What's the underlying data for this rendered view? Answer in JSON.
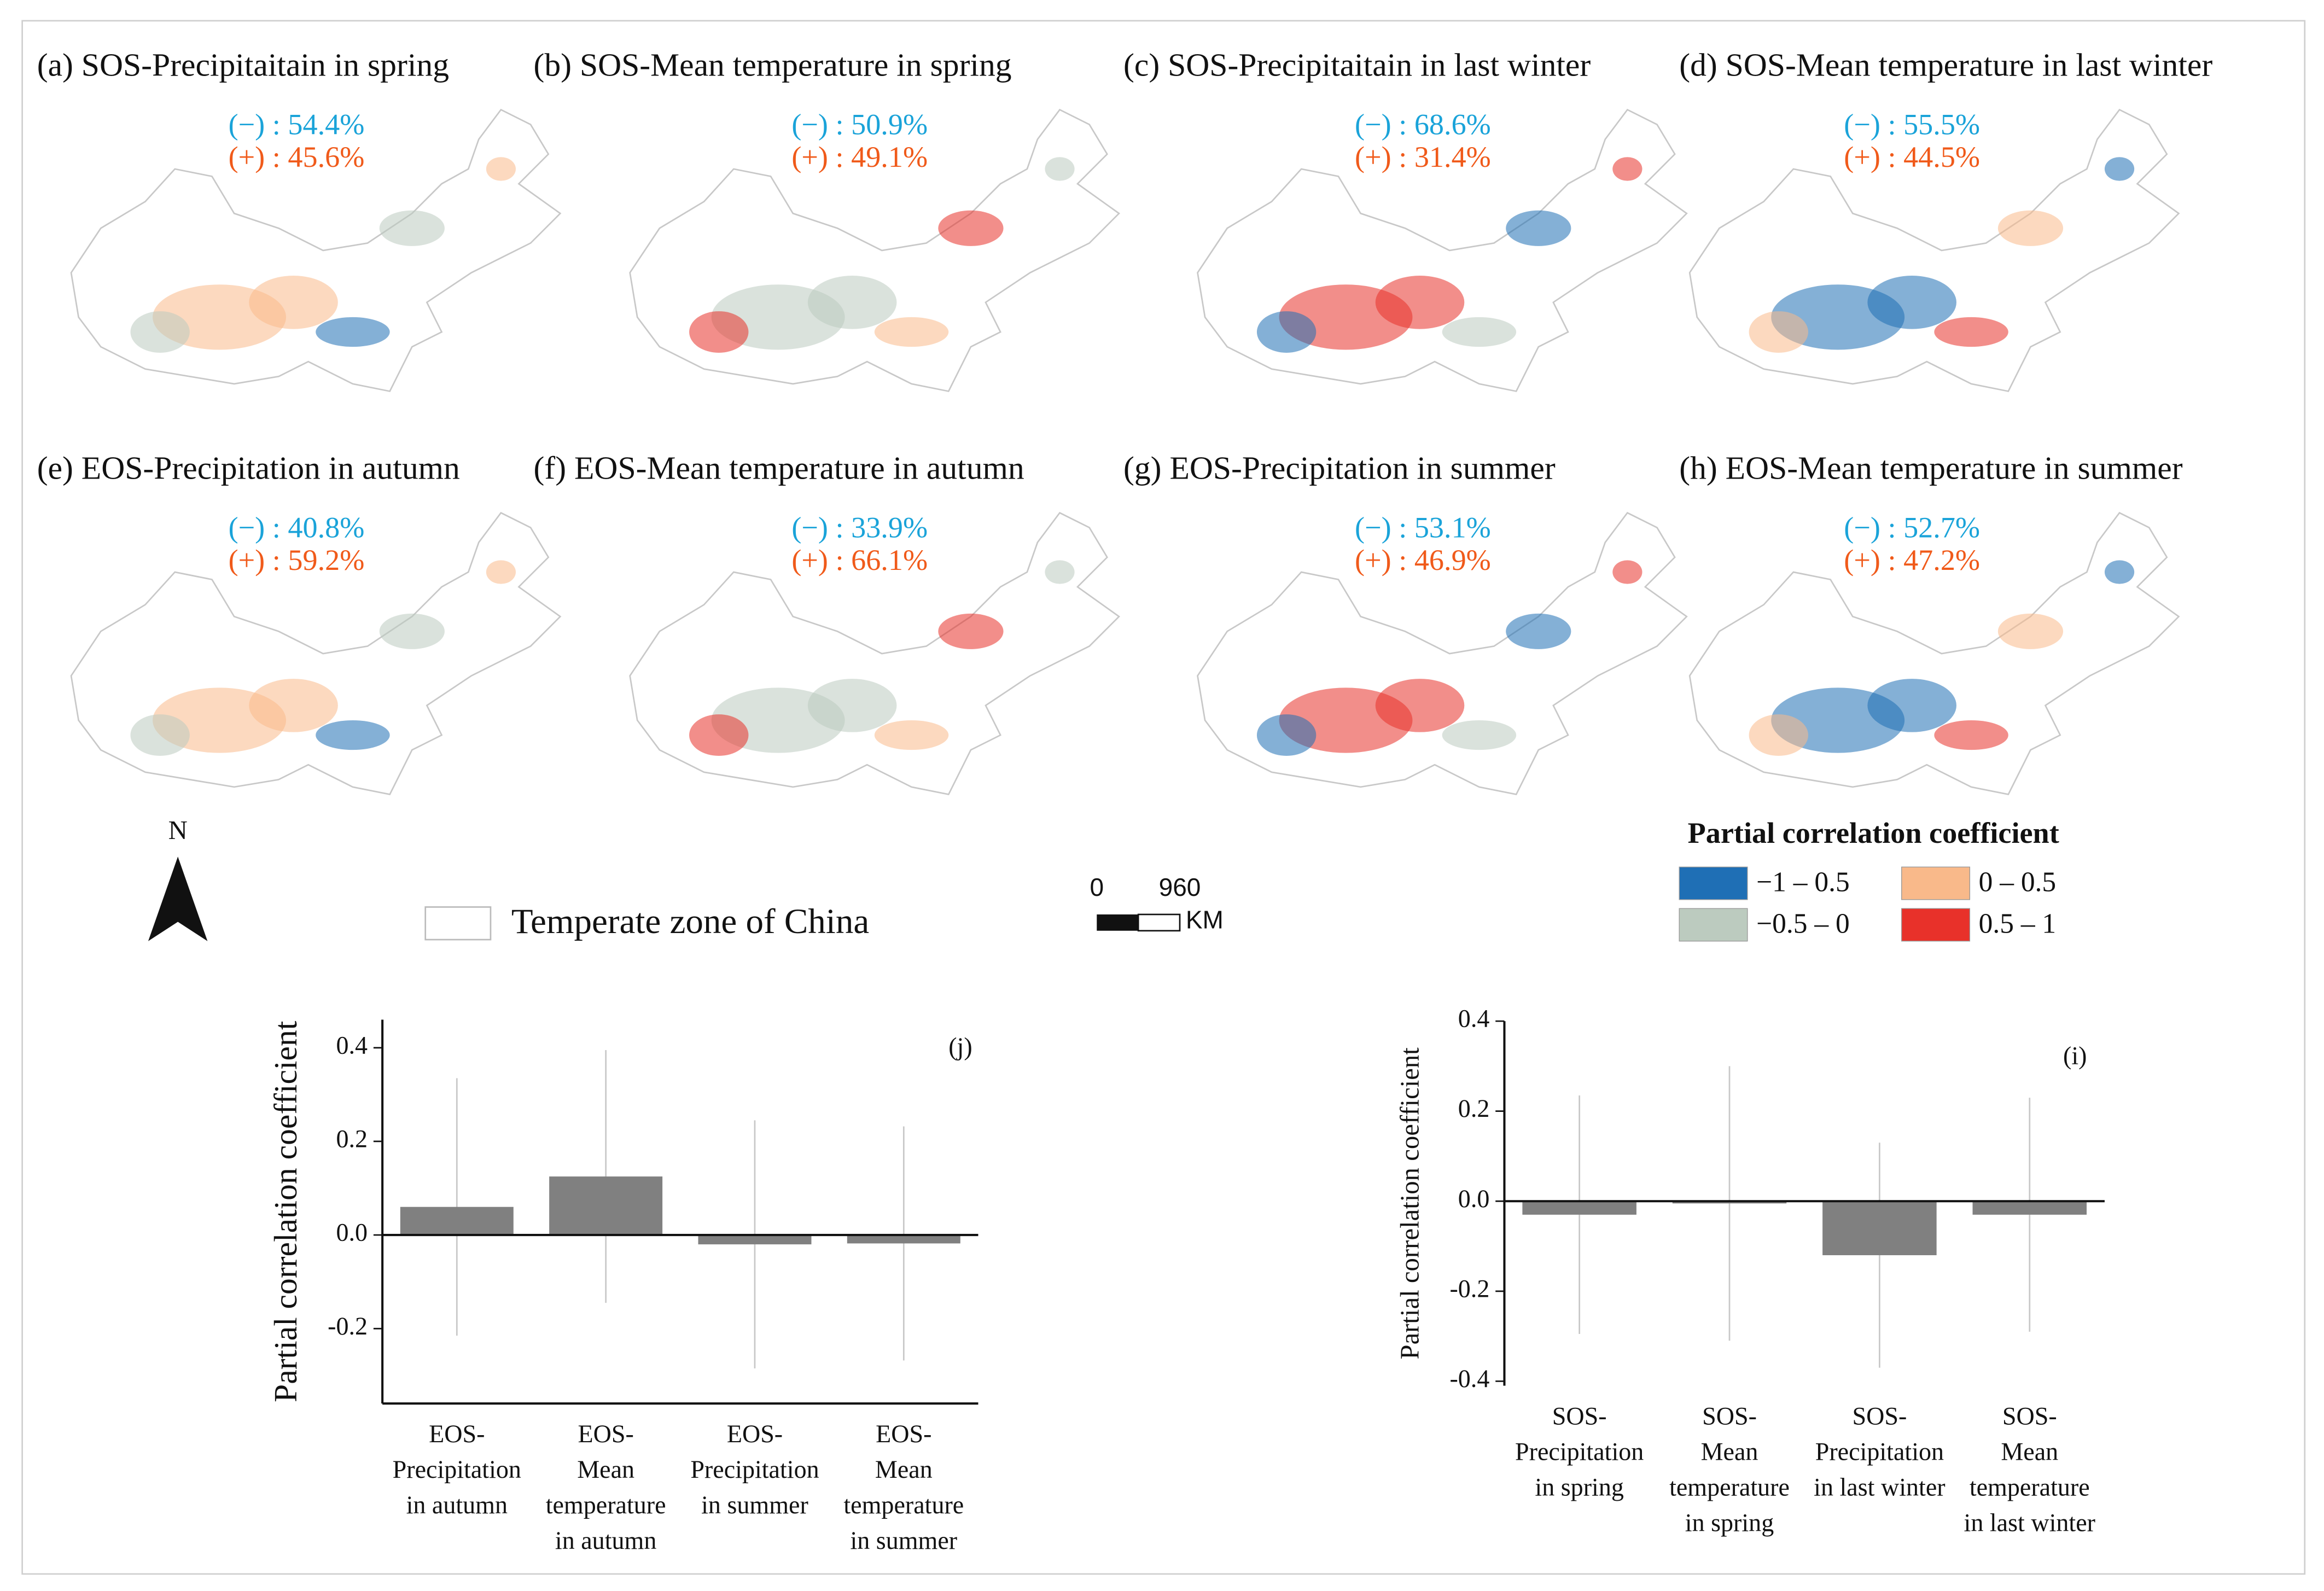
{
  "maps": [
    {
      "title": "(a) SOS-Precipitaitain in spring",
      "negative": "(−) : 54.4%",
      "positive": "(+) : 45.6%"
    },
    {
      "title": "(b) SOS-Mean temperature in spring",
      "negative": "(−) : 50.9%",
      "positive": "(+) : 49.1%"
    },
    {
      "title": "(c) SOS-Precipitaitain in last winter",
      "negative": "(−) : 68.6%",
      "positive": "(+) : 31.4%"
    },
    {
      "title": "(d) SOS-Mean temperature in last winter",
      "negative": "(−) : 55.5%",
      "positive": "(+) : 44.5%"
    },
    {
      "title": "(e) EOS-Precipitation in autumn",
      "negative": "(−) : 40.8%",
      "positive": "(+) : 59.2%"
    },
    {
      "title": "(f) EOS-Mean temperature in autumn",
      "negative": "(−) : 33.9%",
      "positive": "(+) : 66.1%"
    },
    {
      "title": "(g) EOS-Precipitation in summer",
      "negative": "(−) : 53.1%",
      "positive": "(+) : 46.9%"
    },
    {
      "title": "(h) EOS-Mean temperature in summer",
      "negative": "(−) : 52.7%",
      "positive": "(+) : 47.2%"
    }
  ],
  "north": "N",
  "zone_label": "Temperate zone of China",
  "scale": {
    "ticks": [
      0,
      960
    ],
    "unit": "KM"
  },
  "legend": {
    "title": "Partial correlation coefficient",
    "items": [
      {
        "label": "−1  – 0.5",
        "color": "#1f6fb5"
      },
      {
        "label": "0 – 0.5",
        "color": "#f9b98a"
      },
      {
        "label": "−0.5 – 0",
        "color": "#bccbbf"
      },
      {
        "label": "0.5 – 1",
        "color": "#e8312a"
      }
    ]
  },
  "chart_data": [
    {
      "type": "bar",
      "annotation": "(j)",
      "ylabel": "Partial correlation coefficient",
      "categories": [
        "EOS-\nPrecipitation\nin autumn",
        "EOS-\nMean\ntemperature\nin autumn",
        "EOS-\nPrecipitation\nin summer",
        "EOS-\nMean\ntemperature\nin summer"
      ],
      "values": [
        0.06,
        0.125,
        -0.02,
        -0.018
      ],
      "errors": [
        0.275,
        0.27,
        0.265,
        0.25
      ],
      "color": "#808080",
      "error_color": "#c8c8c8",
      "ylim": [
        -0.36,
        0.46
      ],
      "yticks": [
        -0.2,
        {
          "value": 0,
          "label": "0.0"
        },
        0.2,
        0.4
      ]
    },
    {
      "type": "bar",
      "annotation": "(i)",
      "ylabel": "Partial correlation coefficient",
      "categories": [
        "SOS-\nPrecipitation\nin spring",
        "SOS-\nMean\ntemperature\nin spring",
        "SOS-\nPrecipitation\nin last winter",
        "SOS-\nMean\ntemperature\nin last winter"
      ],
      "values": [
        -0.03,
        -0.005,
        -0.12,
        -0.03
      ],
      "errors": [
        0.265,
        0.305,
        0.25,
        0.26
      ],
      "color": "#808080",
      "error_color": "#c8c8c8",
      "ylim": [
        -0.41,
        0.4
      ],
      "yticks": [
        -0.4,
        -0.2,
        {
          "value": 0,
          "label": "0.0"
        },
        0.2,
        0.4
      ]
    }
  ]
}
